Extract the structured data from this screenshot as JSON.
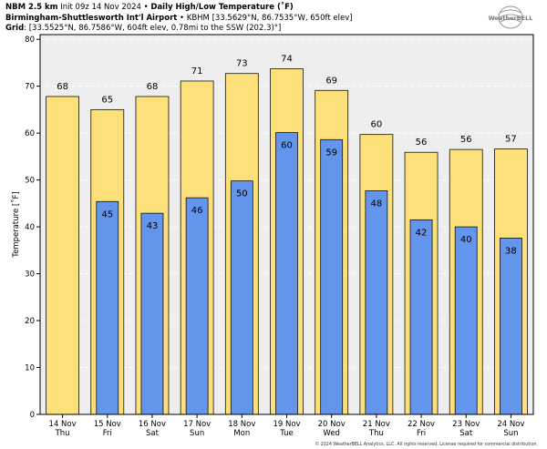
{
  "header": {
    "line1_bold": "NBM 2.5 km",
    "line1_init": "Init 09z 14 Nov 2024",
    "sep": "•",
    "line1_title": "Daily High/Low Temperature (˚F)",
    "line2_bold": "Birmingham-Shuttlesworth Int'l Airport",
    "line2_rest": "KBHM [33.5629°N, 86.7535°W, 650ft elev]",
    "line3_bold": "Grid",
    "line3_rest": ": [33.5525°N, 86.7586°W, 604ft elev, 0.78mi to the SSW (202.3)°]"
  },
  "logo_text": "WeatherBELL",
  "footer": "© 2024 WeatherBELL Analytics, LLC. All rights reserved. License required for commercial distribution.",
  "colors": {
    "high": "#fde07a",
    "low": "#6495ed",
    "outline": "#111111",
    "plot_bg": "#eeeeee",
    "grid": "#ffffff"
  },
  "chart_data": {
    "type": "bar",
    "title": "Daily High/Low Temperature (˚F)",
    "ylabel": "Temperature [˚F]",
    "xlabel": "",
    "ylim": [
      0,
      81
    ],
    "yticks": [
      0,
      10,
      20,
      30,
      40,
      50,
      60,
      70,
      80
    ],
    "categories": [
      {
        "date": "14 Nov",
        "day": "Thu"
      },
      {
        "date": "15 Nov",
        "day": "Fri"
      },
      {
        "date": "16 Nov",
        "day": "Sat"
      },
      {
        "date": "17 Nov",
        "day": "Sun"
      },
      {
        "date": "18 Nov",
        "day": "Mon"
      },
      {
        "date": "19 Nov",
        "day": "Tue"
      },
      {
        "date": "20 Nov",
        "day": "Wed"
      },
      {
        "date": "21 Nov",
        "day": "Thu"
      },
      {
        "date": "22 Nov",
        "day": "Fri"
      },
      {
        "date": "23 Nov",
        "day": "Sat"
      },
      {
        "date": "24 Nov",
        "day": "Sun"
      }
    ],
    "series": [
      {
        "name": "High",
        "values": [
          67.8,
          65.0,
          67.8,
          71.1,
          72.7,
          73.7,
          69.1,
          59.7,
          55.9,
          56.5,
          56.6
        ],
        "labels": [
          "68",
          "65",
          "68",
          "71",
          "73",
          "74",
          "69",
          "60",
          "56",
          "56",
          "57"
        ]
      },
      {
        "name": "Low",
        "values": [
          null,
          45.4,
          42.9,
          46.2,
          49.8,
          60.1,
          58.6,
          47.7,
          41.5,
          40.0,
          37.6
        ],
        "labels": [
          null,
          "45",
          "43",
          "46",
          "50",
          "60",
          "59",
          "48",
          "42",
          "40",
          "38"
        ]
      }
    ]
  }
}
